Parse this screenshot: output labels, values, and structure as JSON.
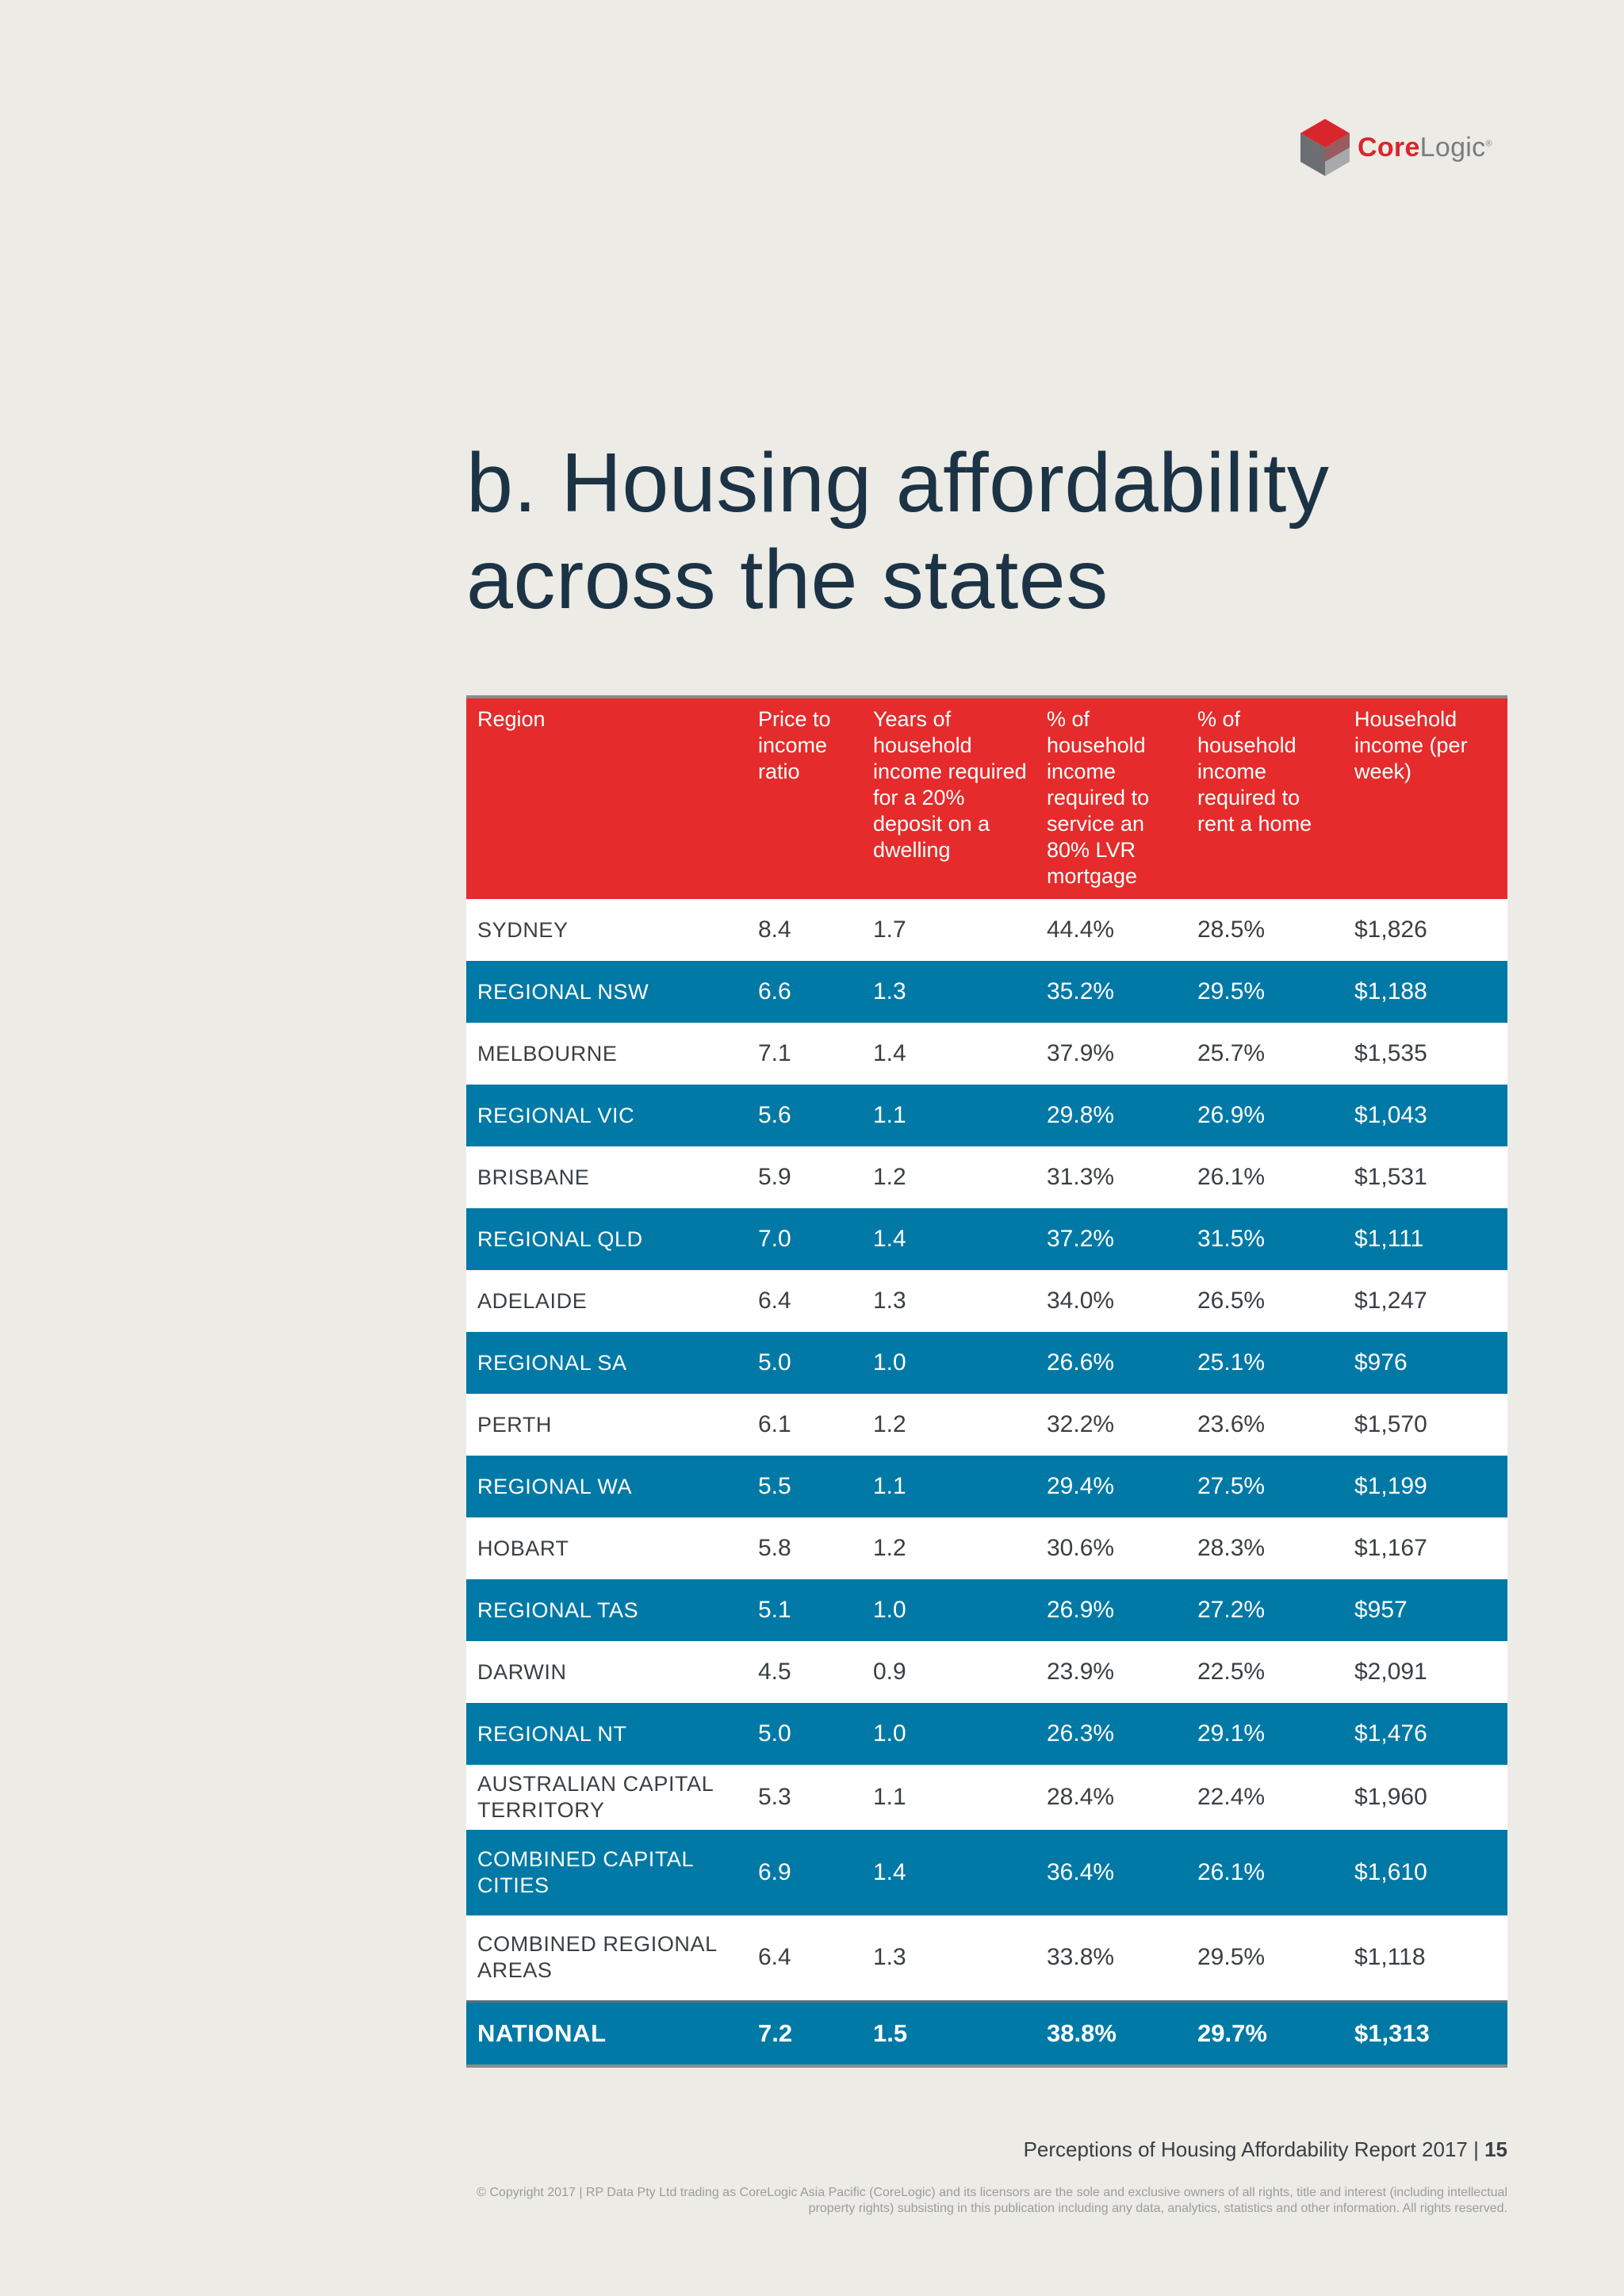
{
  "logo": {
    "core": "Core",
    "logic": "Logic",
    "tm": "®"
  },
  "title": {
    "line1": "b. Housing affordability",
    "line2": "across the states"
  },
  "table": {
    "headers": [
      "Region",
      "Price to income ratio",
      "Years of household income required for a 20% deposit on a dwelling",
      "% of household income required to service an 80% LVR mortgage",
      "% of household income required to rent a home",
      "Household income (per week)"
    ],
    "rows": [
      [
        "SYDNEY",
        "8.4",
        "1.7",
        "44.4%",
        "28.5%",
        "$1,826"
      ],
      [
        "REGIONAL NSW",
        "6.6",
        "1.3",
        "35.2%",
        "29.5%",
        "$1,188"
      ],
      [
        "MELBOURNE",
        "7.1",
        "1.4",
        "37.9%",
        "25.7%",
        "$1,535"
      ],
      [
        "REGIONAL VIC",
        "5.6",
        "1.1",
        "29.8%",
        "26.9%",
        "$1,043"
      ],
      [
        "BRISBANE",
        "5.9",
        "1.2",
        "31.3%",
        "26.1%",
        "$1,531"
      ],
      [
        "REGIONAL QLD",
        "7.0",
        "1.4",
        "37.2%",
        "31.5%",
        "$1,111"
      ],
      [
        "ADELAIDE",
        "6.4",
        "1.3",
        "34.0%",
        "26.5%",
        "$1,247"
      ],
      [
        "REGIONAL SA",
        "5.0",
        "1.0",
        "26.6%",
        "25.1%",
        "$976"
      ],
      [
        "PERTH",
        "6.1",
        "1.2",
        "32.2%",
        "23.6%",
        "$1,570"
      ],
      [
        "REGIONAL WA",
        "5.5",
        "1.1",
        "29.4%",
        "27.5%",
        "$1,199"
      ],
      [
        "HOBART",
        "5.8",
        "1.2",
        "30.6%",
        "28.3%",
        "$1,167"
      ],
      [
        "REGIONAL TAS",
        "5.1",
        "1.0",
        "26.9%",
        "27.2%",
        "$957"
      ],
      [
        "DARWIN",
        "4.5",
        "0.9",
        "23.9%",
        "22.5%",
        "$2,091"
      ],
      [
        "REGIONAL NT",
        "5.0",
        "1.0",
        "26.3%",
        "29.1%",
        "$1,476"
      ],
      [
        "AUSTRALIAN CAPITAL TERRITORY",
        "5.3",
        "1.1",
        "28.4%",
        "22.4%",
        "$1,960"
      ],
      [
        "COMBINED CAPITAL CITIES",
        "6.9",
        "1.4",
        "36.4%",
        "26.1%",
        "$1,610"
      ],
      [
        "COMBINED REGIONAL AREAS",
        "6.4",
        "1.3",
        "33.8%",
        "29.5%",
        "$1,118"
      ]
    ],
    "national": [
      "NATIONAL",
      "7.2",
      "1.5",
      "38.8%",
      "29.7%",
      "$1,313"
    ]
  },
  "colors": {
    "header_red": "#e52b2b",
    "row_blue": "#0079a6",
    "title_navy": "#1c3346"
  },
  "footer": {
    "report": "Perceptions of Housing Affordability Report 2017",
    "separator": " | ",
    "page": "15",
    "copyright": "© Copyright 2017 | RP Data Pty Ltd trading as CoreLogic Asia Pacific (CoreLogic) and its licensors are the sole and exclusive owners of all rights, title and interest (including intellectual property rights) subsisting in this publication including any data, analytics, statistics and other information. All rights reserved."
  }
}
